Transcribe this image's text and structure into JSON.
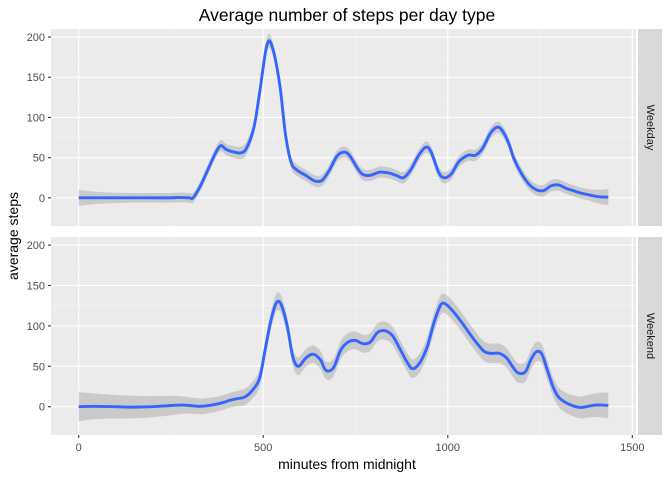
{
  "chart_data": {
    "type": "line",
    "title": "Average number of steps per day type",
    "xlabel": "minutes from midnight",
    "ylabel": "average steps",
    "xlim": [
      -75,
      1510
    ],
    "ylim": [
      -35,
      210
    ],
    "x_ticks": [
      0,
      500,
      1000,
      1500
    ],
    "y_ticks": [
      0,
      50,
      100,
      150,
      200
    ],
    "x_tick_labels": [
      "0",
      "500",
      "1000",
      "1500"
    ],
    "y_tick_labels": [
      "0",
      "50",
      "100",
      "150",
      "200"
    ],
    "grid": true,
    "line_color": "#3366FF",
    "ribbon_color": "#999999",
    "panels": [
      {
        "name": "Weekday",
        "points": [
          [
            0,
            0
          ],
          [
            50,
            0
          ],
          [
            100,
            0
          ],
          [
            150,
            0
          ],
          [
            200,
            0
          ],
          [
            250,
            0
          ],
          [
            270,
            0.5
          ],
          [
            300,
            0
          ],
          [
            310,
            0
          ],
          [
            330,
            15
          ],
          [
            350,
            35
          ],
          [
            370,
            55
          ],
          [
            385,
            65
          ],
          [
            400,
            60
          ],
          [
            420,
            57
          ],
          [
            440,
            56
          ],
          [
            455,
            62
          ],
          [
            475,
            88
          ],
          [
            490,
            130
          ],
          [
            510,
            190
          ],
          [
            525,
            187
          ],
          [
            545,
            140
          ],
          [
            560,
            80
          ],
          [
            575,
            45
          ],
          [
            590,
            35
          ],
          [
            615,
            28
          ],
          [
            640,
            21
          ],
          [
            660,
            22
          ],
          [
            680,
            35
          ],
          [
            700,
            52
          ],
          [
            720,
            57
          ],
          [
            735,
            52
          ],
          [
            755,
            37
          ],
          [
            770,
            29
          ],
          [
            790,
            28
          ],
          [
            815,
            32
          ],
          [
            840,
            31
          ],
          [
            860,
            28
          ],
          [
            880,
            25
          ],
          [
            900,
            35
          ],
          [
            920,
            52
          ],
          [
            940,
            63
          ],
          [
            955,
            57
          ],
          [
            975,
            32
          ],
          [
            990,
            25
          ],
          [
            1010,
            30
          ],
          [
            1030,
            45
          ],
          [
            1055,
            53
          ],
          [
            1075,
            53
          ],
          [
            1095,
            62
          ],
          [
            1115,
            80
          ],
          [
            1135,
            88
          ],
          [
            1150,
            82
          ],
          [
            1165,
            68
          ],
          [
            1180,
            48
          ],
          [
            1200,
            30
          ],
          [
            1220,
            17
          ],
          [
            1240,
            10
          ],
          [
            1260,
            9
          ],
          [
            1280,
            15
          ],
          [
            1300,
            16
          ],
          [
            1320,
            12
          ],
          [
            1340,
            9
          ],
          [
            1360,
            6
          ],
          [
            1380,
            4
          ],
          [
            1400,
            2
          ],
          [
            1420,
            1
          ],
          [
            1435,
            1
          ]
        ],
        "se": [
          [
            0,
            10
          ],
          [
            60,
            7
          ],
          [
            150,
            6
          ],
          [
            250,
            6
          ],
          [
            320,
            6
          ],
          [
            400,
            7
          ],
          [
            500,
            9
          ],
          [
            600,
            7
          ],
          [
            800,
            7
          ],
          [
            1000,
            7
          ],
          [
            1200,
            7
          ],
          [
            1300,
            7
          ],
          [
            1380,
            7
          ],
          [
            1435,
            10
          ]
        ]
      },
      {
        "name": "Weekend",
        "points": [
          [
            0,
            0
          ],
          [
            40,
            0.5
          ],
          [
            100,
            0
          ],
          [
            150,
            -0.5
          ],
          [
            200,
            0
          ],
          [
            250,
            1.5
          ],
          [
            280,
            2
          ],
          [
            300,
            1.5
          ],
          [
            330,
            0.5
          ],
          [
            360,
            2
          ],
          [
            390,
            5
          ],
          [
            410,
            8
          ],
          [
            430,
            10
          ],
          [
            450,
            12
          ],
          [
            470,
            20
          ],
          [
            490,
            35
          ],
          [
            505,
            70
          ],
          [
            520,
            105
          ],
          [
            535,
            128
          ],
          [
            548,
            127
          ],
          [
            565,
            100
          ],
          [
            580,
            62
          ],
          [
            595,
            50
          ],
          [
            615,
            60
          ],
          [
            635,
            65
          ],
          [
            655,
            58
          ],
          [
            670,
            45
          ],
          [
            690,
            48
          ],
          [
            710,
            70
          ],
          [
            730,
            80
          ],
          [
            750,
            82
          ],
          [
            770,
            78
          ],
          [
            790,
            80
          ],
          [
            810,
            92
          ],
          [
            830,
            94
          ],
          [
            850,
            88
          ],
          [
            870,
            72
          ],
          [
            890,
            55
          ],
          [
            905,
            47
          ],
          [
            925,
            55
          ],
          [
            945,
            75
          ],
          [
            960,
            100
          ],
          [
            975,
            120
          ],
          [
            985,
            128
          ],
          [
            1000,
            125
          ],
          [
            1020,
            115
          ],
          [
            1040,
            103
          ],
          [
            1060,
            90
          ],
          [
            1080,
            78
          ],
          [
            1100,
            68
          ],
          [
            1120,
            66
          ],
          [
            1140,
            66
          ],
          [
            1160,
            60
          ],
          [
            1175,
            50
          ],
          [
            1190,
            42
          ],
          [
            1210,
            43
          ],
          [
            1225,
            58
          ],
          [
            1240,
            68
          ],
          [
            1255,
            65
          ],
          [
            1270,
            45
          ],
          [
            1285,
            25
          ],
          [
            1300,
            12
          ],
          [
            1320,
            5
          ],
          [
            1340,
            1
          ],
          [
            1360,
            -1
          ],
          [
            1380,
            0.5
          ],
          [
            1400,
            2
          ],
          [
            1420,
            2
          ],
          [
            1435,
            1.5
          ]
        ],
        "se": [
          [
            0,
            18
          ],
          [
            60,
            15
          ],
          [
            150,
            14
          ],
          [
            250,
            12
          ],
          [
            300,
            10
          ],
          [
            400,
            9
          ],
          [
            500,
            11
          ],
          [
            600,
            11
          ],
          [
            800,
            11
          ],
          [
            1000,
            12
          ],
          [
            1200,
            12
          ],
          [
            1300,
            12
          ],
          [
            1380,
            14
          ],
          [
            1435,
            16
          ]
        ]
      }
    ]
  }
}
